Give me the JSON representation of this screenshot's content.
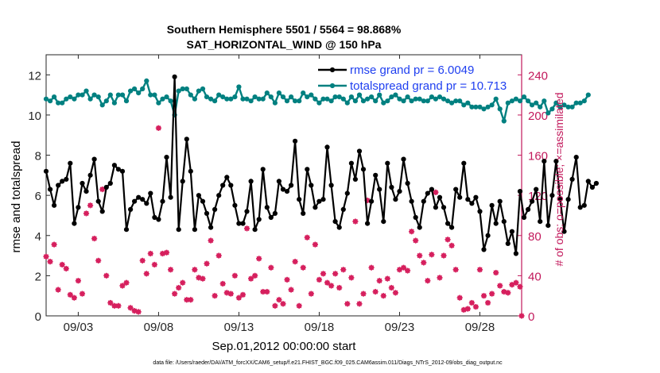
{
  "chart_data": {
    "type": "line",
    "title_lines": [
      "Southern Hemisphere 5501 / 5564 = 98.868%",
      "SAT_HORIZONTAL_WIND @ 150 hPa"
    ],
    "xlabel": "Sep.01,2012 00:00:00 start",
    "ylabel_left": "rmse and totalspread",
    "ylabel_right": "# of obs: o=possible; ×=assimilated",
    "footer": "data file: /Users/raeder/DAI/ATM_forcXX/CAM6_setup/f.e21.FHIST_BGC.f09_025.CAM6assim.011/Diags_NTrS_2012-09/obs_diag_output.nc",
    "xlim": [
      1.0,
      30.6
    ],
    "ylim_left": [
      0,
      13
    ],
    "ylim_right": [
      0,
      260
    ],
    "x_ticks": [
      {
        "value": 3,
        "label": "09/03"
      },
      {
        "value": 8,
        "label": "09/08"
      },
      {
        "value": 13,
        "label": "09/13"
      },
      {
        "value": 18,
        "label": "09/18"
      },
      {
        "value": 23,
        "label": "09/23"
      },
      {
        "value": 28,
        "label": "09/28"
      }
    ],
    "y_ticks_left": [
      0,
      2,
      4,
      6,
      8,
      10,
      12
    ],
    "y_ticks_right": [
      0,
      40,
      80,
      120,
      160,
      200,
      240
    ],
    "legend": {
      "placement": "top-right",
      "entries": [
        "rmse grand pr = 6.0049",
        "totalspread grand pr = 10.713"
      ]
    },
    "colors": {
      "rmse": "#000000",
      "totalspread": "#008080",
      "obs": "#d6205e",
      "legend_text": "#1f3ff0",
      "right_axis": "#c2185b"
    },
    "series": [
      {
        "name": "rmse",
        "start": 1.0,
        "step": 0.25,
        "values": [
          7.2,
          6.3,
          5.5,
          6.5,
          6.7,
          6.8,
          7.6,
          4.6,
          5.4,
          6.6,
          6.2,
          7.0,
          7.8,
          5.7,
          5.2,
          6.4,
          6.6,
          7.5,
          7.3,
          7.2,
          4.3,
          5.3,
          5.7,
          5.9,
          5.8,
          5.6,
          6.1,
          4.9,
          4.8,
          5.7,
          7.9,
          5.9,
          11.9,
          4.3,
          6.7,
          8.8,
          7.2,
          4.3,
          6.0,
          5.7,
          5.1,
          4.4,
          5.3,
          6.0,
          6.5,
          6.9,
          6.5,
          5.5,
          4.6,
          4.6,
          5.2,
          6.7,
          4.3,
          4.8,
          7.3,
          5.4,
          4.9,
          5.1,
          6.7,
          6.3,
          6.2,
          6.5,
          8.7,
          5.8,
          5.1,
          7.3,
          6.5,
          5.4,
          5.7,
          5.8,
          8.4,
          6.5,
          4.7,
          4.4,
          5.3,
          6.1,
          7.6,
          6.8,
          8.2,
          7.3,
          4.6,
          5.7,
          7.0,
          6.3,
          4.7,
          7.6,
          6.4,
          5.8,
          6.2,
          7.8,
          6.6,
          5.7,
          4.9,
          4.4,
          5.7,
          6.1,
          6.3,
          5.4,
          5.9,
          5.4,
          4.6,
          4.4,
          6.3,
          5.9,
          7.6,
          5.8,
          5.6,
          5.9,
          5.2,
          3.3,
          4.0,
          5.5,
          4.6,
          5.7,
          4.7,
          3.6,
          4.2,
          3.1,
          6.2,
          4.9,
          5.3,
          5.7,
          6.3,
          4.7,
          7.7,
          4.5,
          6.0,
          7.7,
          5.8,
          4.2,
          5.8,
          6.8,
          7.9,
          5.4,
          5.5,
          6.7,
          6.4,
          6.6
        ]
      },
      {
        "name": "totalspread",
        "start": 1.0,
        "step": 0.25,
        "values": [
          10.8,
          10.7,
          10.9,
          10.6,
          10.6,
          10.8,
          10.9,
          10.8,
          11.0,
          11.0,
          11.2,
          10.8,
          11.0,
          10.9,
          10.5,
          10.7,
          11.0,
          10.6,
          11.0,
          11.0,
          10.7,
          11.2,
          11.3,
          11.1,
          11.3,
          11.7,
          11.0,
          11.0,
          10.6,
          10.8,
          10.9,
          10.7,
          10.0,
          11.2,
          11.3,
          11.3,
          11.0,
          10.8,
          11.2,
          11.3,
          10.9,
          10.8,
          10.7,
          11.0,
          10.9,
          10.8,
          10.8,
          10.9,
          11.4,
          10.8,
          10.8,
          10.7,
          10.9,
          10.8,
          10.8,
          11.1,
          10.9,
          10.6,
          11.1,
          10.9,
          10.7,
          10.9,
          10.7,
          10.7,
          11.1,
          10.9,
          11.0,
          10.8,
          10.6,
          10.8,
          10.8,
          10.7,
          10.9,
          10.9,
          10.8,
          10.6,
          10.9,
          10.7,
          11.0,
          10.7,
          10.8,
          10.9,
          10.7,
          11.0,
          10.6,
          10.7,
          10.9,
          11.0,
          10.8,
          10.7,
          10.9,
          10.7,
          10.8,
          10.8,
          10.7,
          10.7,
          10.9,
          10.8,
          10.9,
          10.8,
          10.7,
          10.6,
          10.7,
          10.7,
          10.5,
          10.6,
          10.4,
          10.4,
          10.4,
          10.3,
          10.4,
          10.5,
          10.8,
          10.3,
          9.7,
          10.6,
          10.7,
          10.8,
          10.7,
          10.9,
          10.7,
          10.5,
          10.6,
          10.4,
          10.7,
          10.1,
          10.3,
          10.6,
          10.4,
          10.5,
          10.4,
          10.4,
          10.6,
          10.6,
          10.7,
          11.0
        ]
      },
      {
        "name": "obs_possible_assimilated",
        "axis": "right",
        "points": [
          [
            1.0,
            59
          ],
          [
            1.25,
            54
          ],
          [
            1.5,
            71
          ],
          [
            1.75,
            26
          ],
          [
            2.0,
            51
          ],
          [
            2.25,
            47
          ],
          [
            2.5,
            21
          ],
          [
            2.75,
            18
          ],
          [
            3.0,
            35
          ],
          [
            3.25,
            22
          ],
          [
            3.5,
            102
          ],
          [
            3.75,
            110
          ],
          [
            4.0,
            77
          ],
          [
            4.25,
            55
          ],
          [
            4.5,
            126
          ],
          [
            4.75,
            40
          ],
          [
            5.0,
            13
          ],
          [
            5.25,
            10
          ],
          [
            5.5,
            10
          ],
          [
            5.75,
            30
          ],
          [
            6.0,
            33
          ],
          [
            6.25,
            8
          ],
          [
            6.5,
            5
          ],
          [
            6.75,
            4
          ],
          [
            7.0,
            55
          ],
          [
            7.25,
            42
          ],
          [
            7.5,
            62
          ],
          [
            7.75,
            51
          ],
          [
            8.0,
            187
          ],
          [
            8.25,
            62
          ],
          [
            8.5,
            63
          ],
          [
            8.75,
            46
          ],
          [
            9.0,
            22
          ],
          [
            9.25,
            28
          ],
          [
            9.5,
            33
          ],
          [
            9.75,
            16
          ],
          [
            10.0,
            16
          ],
          [
            10.25,
            46
          ],
          [
            10.5,
            38
          ],
          [
            10.75,
            37
          ],
          [
            11.0,
            52
          ],
          [
            11.25,
            75
          ],
          [
            11.5,
            20
          ],
          [
            11.75,
            60
          ],
          [
            12.0,
            32
          ],
          [
            12.25,
            23
          ],
          [
            12.5,
            22
          ],
          [
            12.75,
            40
          ],
          [
            13.0,
            18
          ],
          [
            13.25,
            21
          ],
          [
            13.5,
            87
          ],
          [
            13.75,
            37
          ],
          [
            14.0,
            40
          ],
          [
            14.25,
            57
          ],
          [
            14.5,
            24
          ],
          [
            14.75,
            24
          ],
          [
            15.0,
            48
          ],
          [
            15.25,
            10
          ],
          [
            15.5,
            16
          ],
          [
            15.75,
            12
          ],
          [
            16.0,
            36
          ],
          [
            16.25,
            26
          ],
          [
            16.5,
            54
          ],
          [
            16.75,
            10
          ],
          [
            17.0,
            48
          ],
          [
            17.25,
            78
          ],
          [
            17.5,
            22
          ],
          [
            17.75,
            71
          ],
          [
            18.0,
            36
          ],
          [
            18.25,
            42
          ],
          [
            18.5,
            33
          ],
          [
            18.75,
            30
          ],
          [
            19.0,
            42
          ],
          [
            19.25,
            28
          ],
          [
            19.5,
            46
          ],
          [
            19.75,
            12
          ],
          [
            20.0,
            38
          ],
          [
            20.25,
            94
          ],
          [
            20.5,
            12
          ],
          [
            20.75,
            22
          ],
          [
            21.0,
            115
          ],
          [
            21.25,
            48
          ],
          [
            21.5,
            24
          ],
          [
            21.75,
            35
          ],
          [
            22.0,
            20
          ],
          [
            22.25,
            37
          ],
          [
            22.5,
            28
          ],
          [
            22.75,
            23
          ],
          [
            23.0,
            46
          ],
          [
            23.25,
            48
          ],
          [
            23.5,
            45
          ],
          [
            23.75,
            84
          ],
          [
            24.0,
            75
          ],
          [
            24.25,
            60
          ],
          [
            24.5,
            53
          ],
          [
            24.75,
            35
          ],
          [
            25.0,
            61
          ],
          [
            25.25,
            123
          ],
          [
            25.5,
            38
          ],
          [
            25.75,
            60
          ],
          [
            26.0,
            76
          ],
          [
            26.25,
            70
          ],
          [
            26.5,
            46
          ],
          [
            26.75,
            18
          ],
          [
            27.0,
            6
          ],
          [
            27.25,
            7
          ],
          [
            27.5,
            13
          ],
          [
            27.75,
            9
          ],
          [
            28.0,
            46
          ],
          [
            28.25,
            20
          ],
          [
            28.5,
            13
          ],
          [
            28.75,
            22
          ],
          [
            29.0,
            43
          ],
          [
            29.25,
            30
          ],
          [
            29.5,
            24
          ],
          [
            29.75,
            23
          ],
          [
            30.0,
            31
          ],
          [
            30.25,
            33
          ],
          [
            30.5,
            29
          ],
          [
            30.6,
            0
          ]
        ]
      }
    ]
  }
}
